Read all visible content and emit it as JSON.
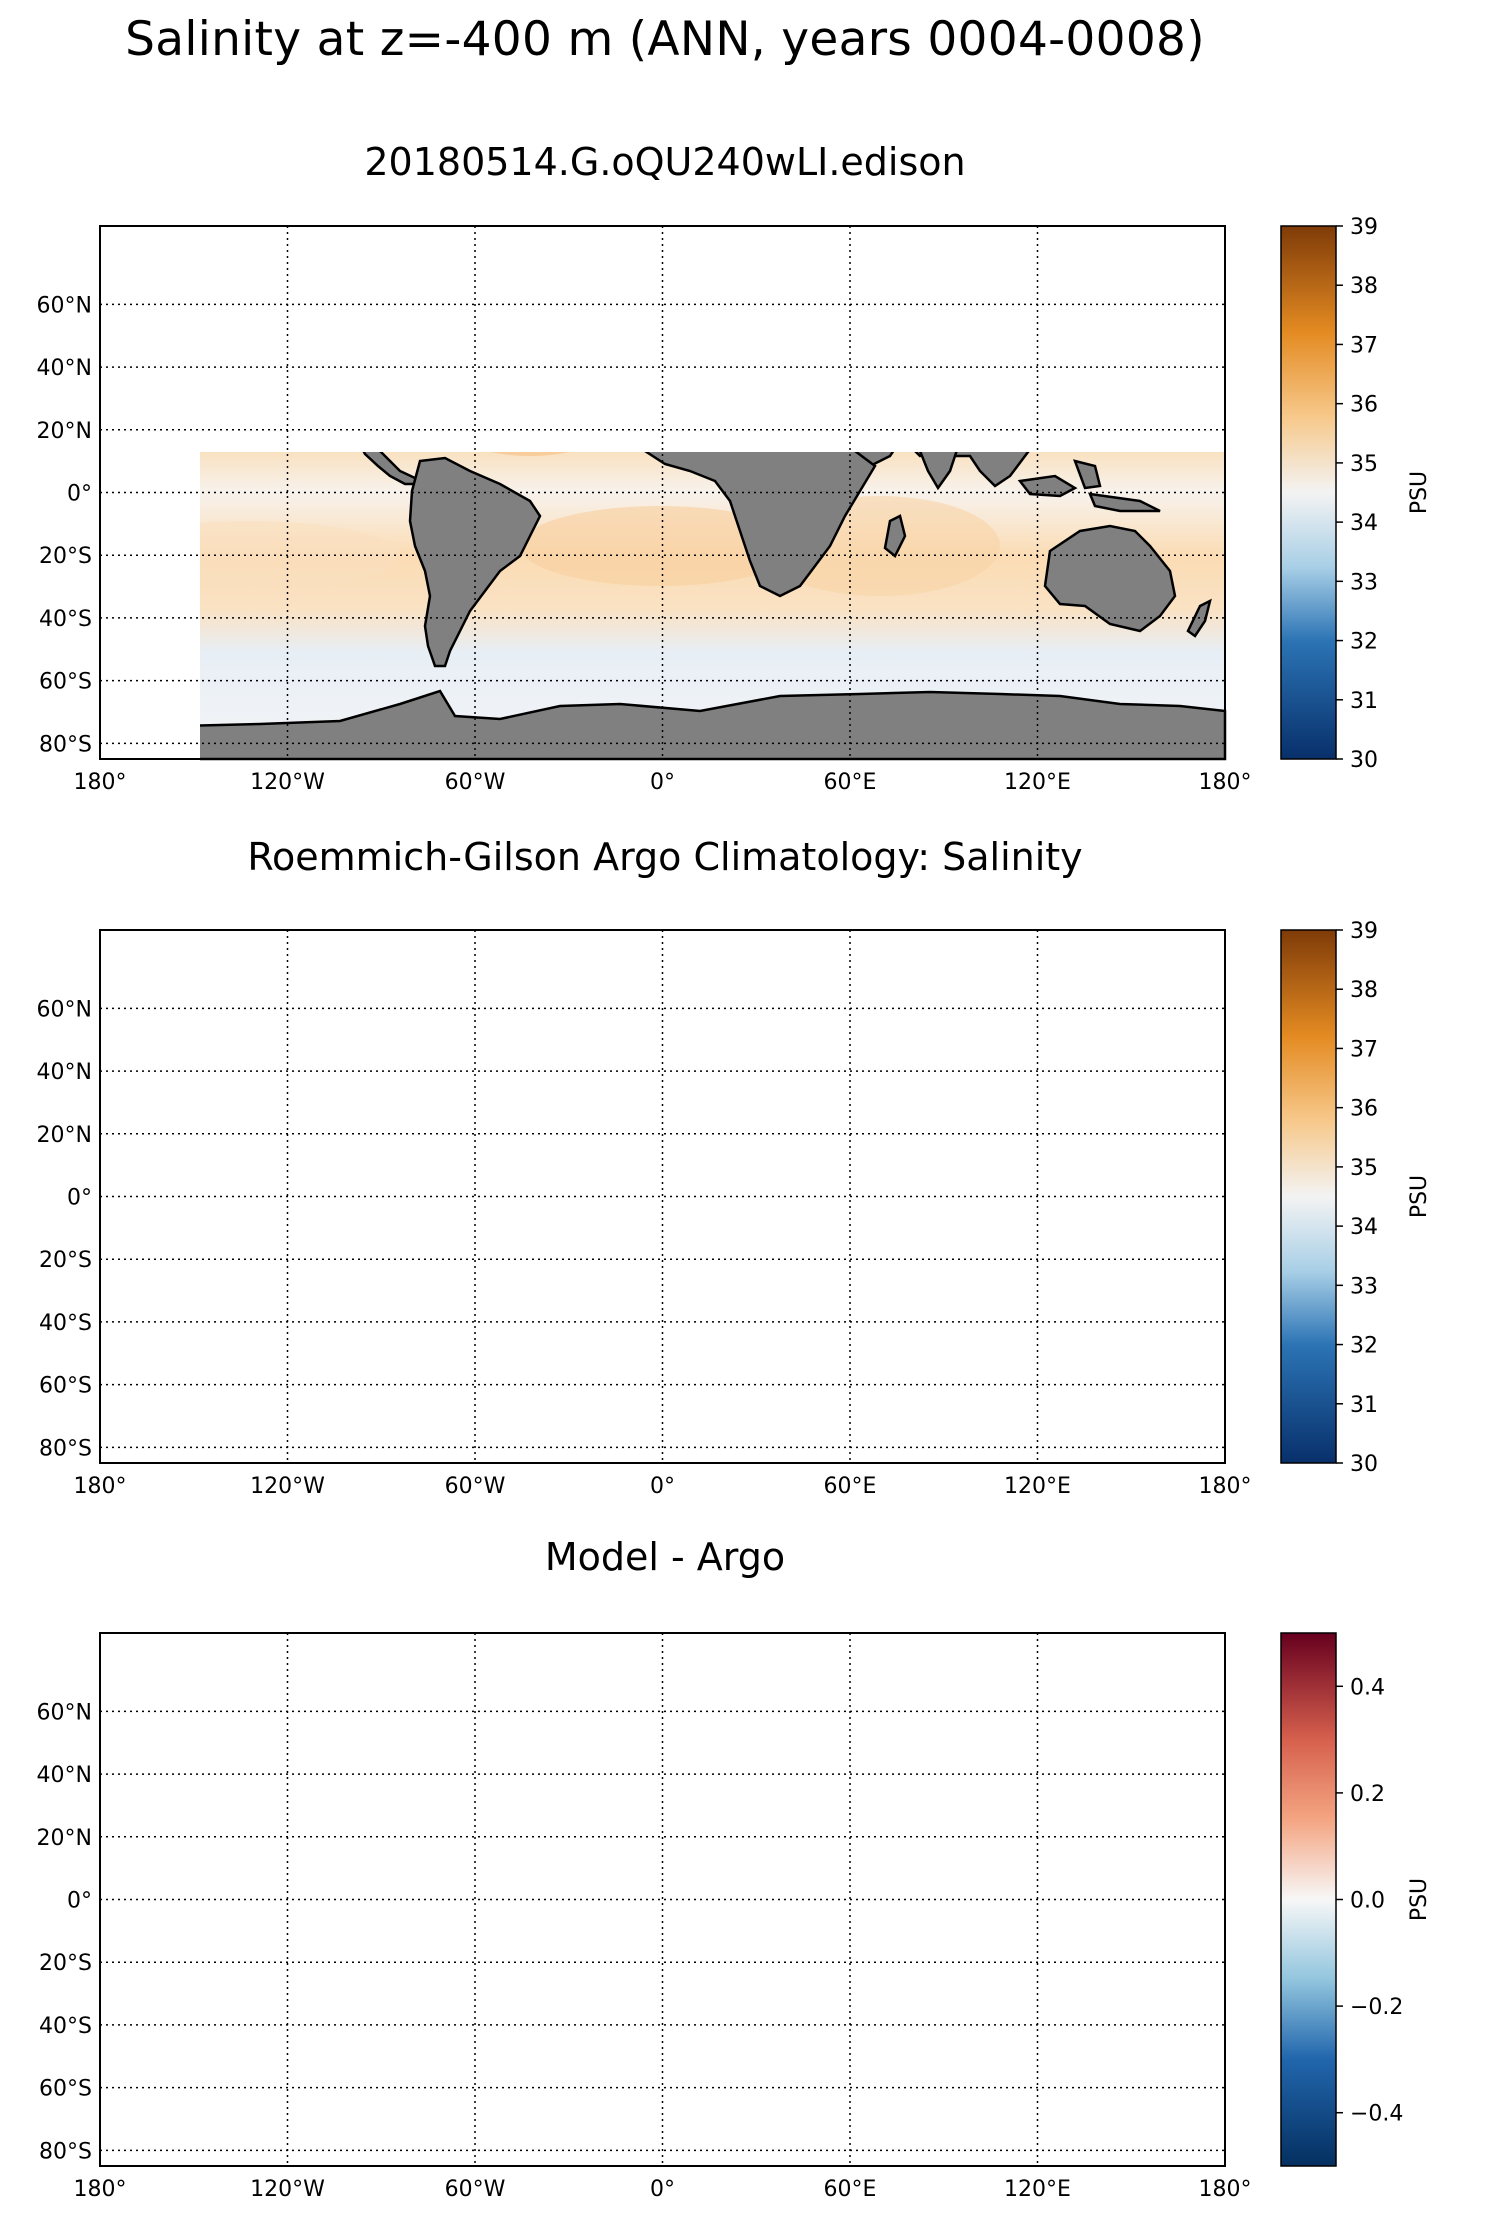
{
  "title": "Salinity at z=-400 m (ANN, years 0004-0008)",
  "panels": [
    {
      "title": "20180514.G.oQU240wLI.edison",
      "colormap": "salinity",
      "colorbar": {
        "label": "PSU",
        "ticks": [
          "30",
          "31",
          "32",
          "33",
          "34",
          "35",
          "36",
          "37",
          "38",
          "39"
        ],
        "values": [
          30,
          31,
          32,
          33,
          34,
          35,
          36,
          37,
          38,
          39
        ],
        "range": [
          30,
          39
        ]
      }
    },
    {
      "title": "Roemmich-Gilson Argo Climatology: Salinity",
      "colormap": "salinity",
      "colorbar": {
        "label": "PSU",
        "ticks": [
          "30",
          "31",
          "32",
          "33",
          "34",
          "35",
          "36",
          "37",
          "38",
          "39"
        ],
        "values": [
          30,
          31,
          32,
          33,
          34,
          35,
          36,
          37,
          38,
          39
        ],
        "range": [
          30,
          39
        ]
      }
    },
    {
      "title": "Model - Argo",
      "colormap": "difference",
      "colorbar": {
        "label": "PSU",
        "ticks": [
          "0.4",
          "0.2",
          "0.0",
          "−0.2",
          "−0.4"
        ],
        "values": [
          0.4,
          0.2,
          0.0,
          -0.2,
          -0.4
        ],
        "range": [
          -0.5,
          0.5
        ]
      }
    }
  ],
  "map": {
    "lon_ticks": [
      "180°",
      "120°W",
      "60°W",
      "0°",
      "60°E",
      "120°E",
      "180°"
    ],
    "lon_values": [
      -180,
      -120,
      -60,
      0,
      60,
      120,
      180
    ],
    "lat_ticks": [
      "60°N",
      "40°N",
      "20°N",
      "0°",
      "20°S",
      "40°S",
      "60°S",
      "80°S"
    ],
    "lat_values": [
      60,
      40,
      20,
      0,
      -20,
      -40,
      -60,
      -80
    ],
    "lat_range": [
      -85,
      85
    ],
    "lon_range": [
      -180,
      180
    ],
    "land_color": "#808080",
    "gridlines": "dotted"
  },
  "colors": {
    "salinity_low": "#08306b",
    "salinity_mid": "#f5f5f5",
    "salinity_high": "#7f3b08",
    "diff_low": "#053061",
    "diff_mid": "#f7f7f7",
    "diff_high": "#67001f"
  }
}
